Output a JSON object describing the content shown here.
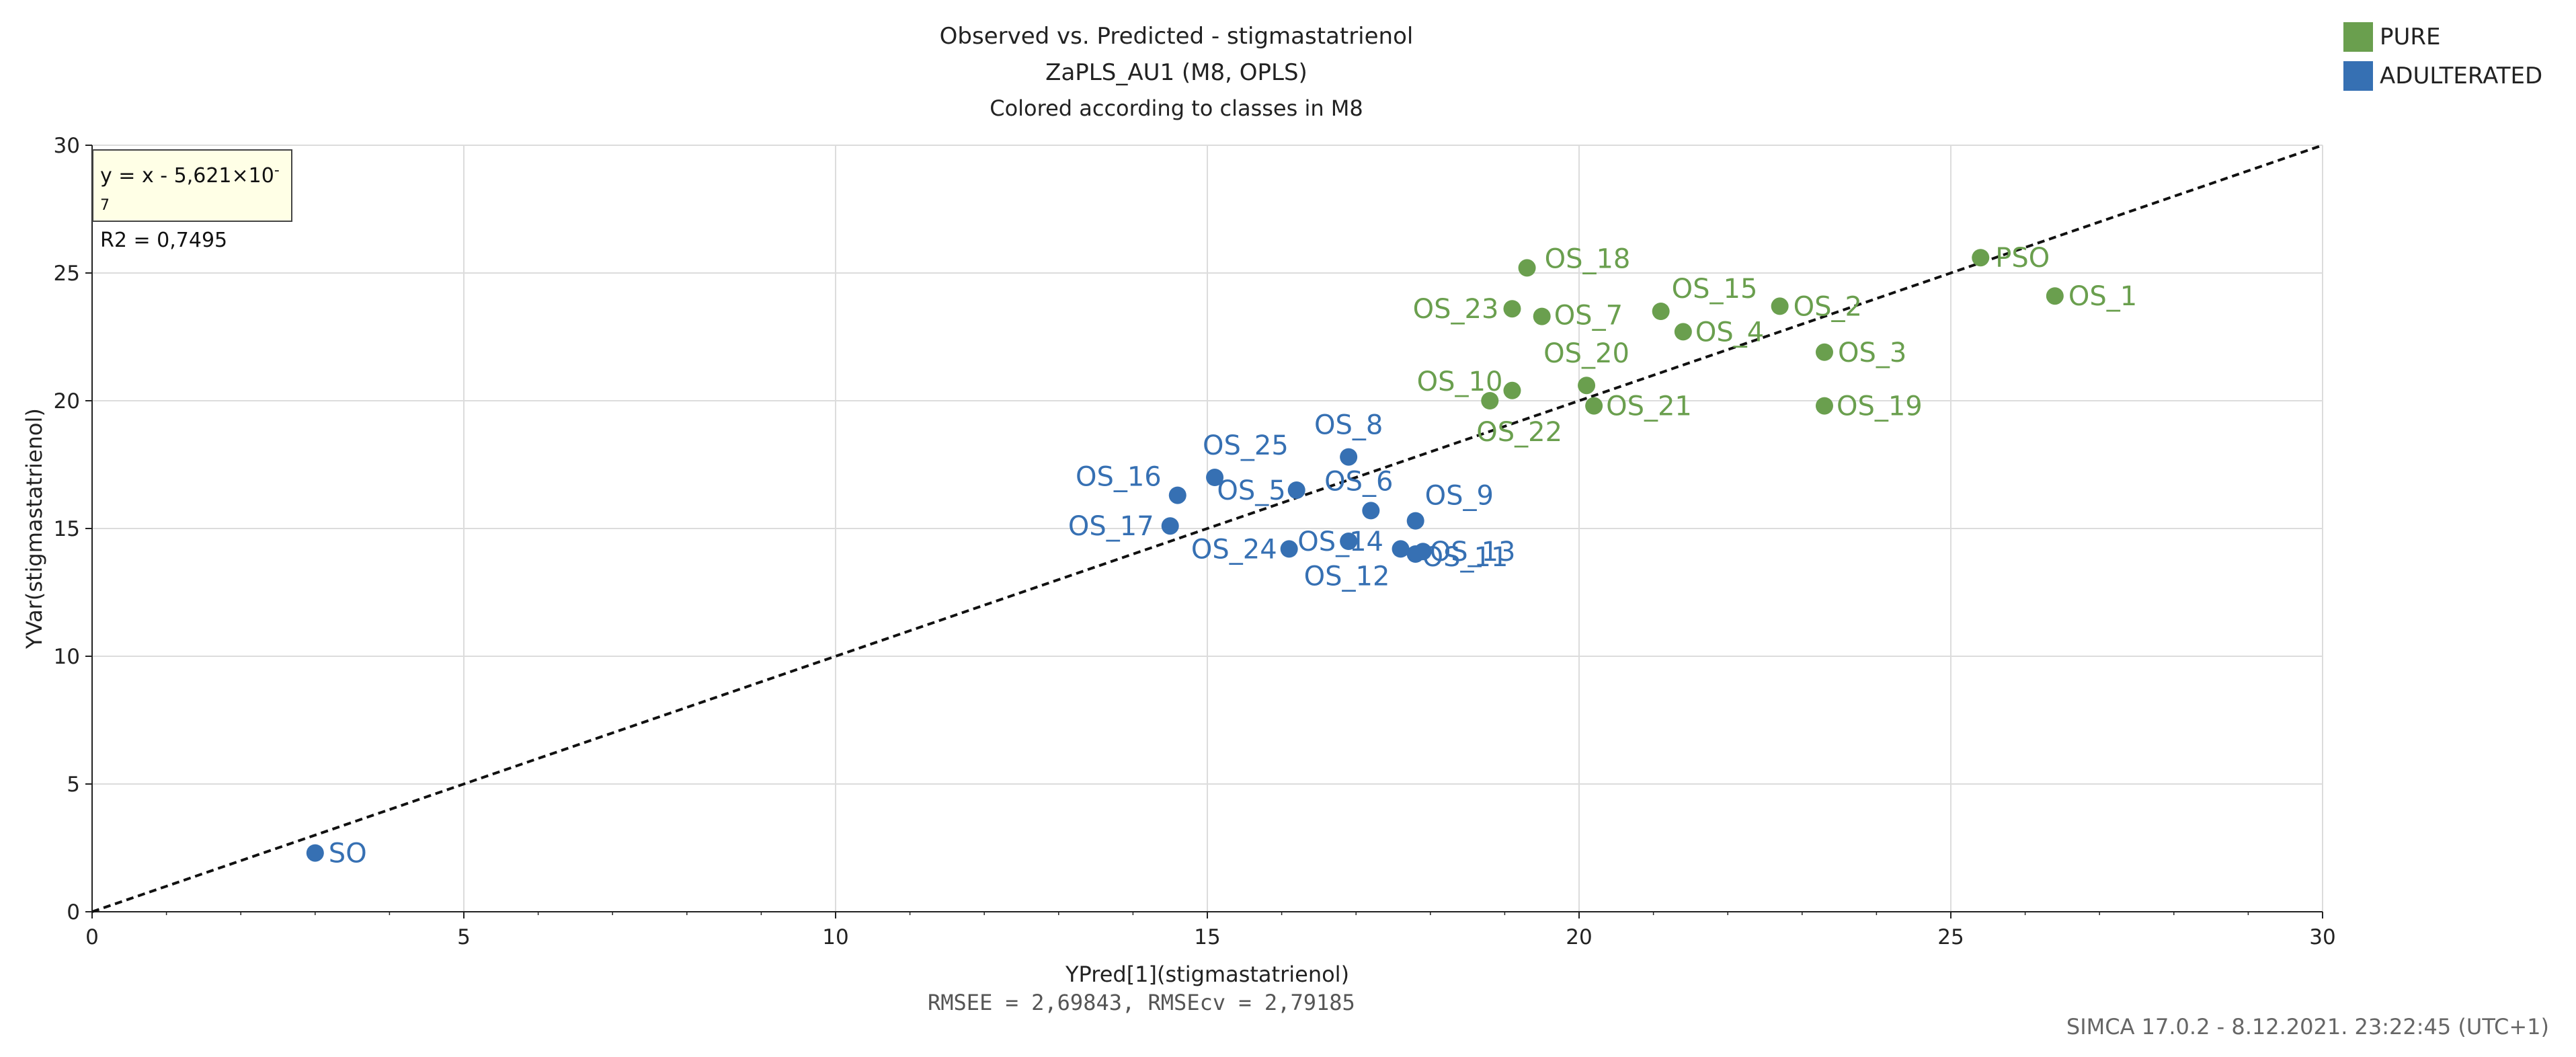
{
  "chart_data": {
    "type": "scatter",
    "title": "Observed vs. Predicted - stigmastatrienol",
    "subtitle": "ZaPLS_AU1 (M8, OPLS)",
    "subtitle2": "Colored according to classes in M8",
    "xlabel": "YPred[1](stigmastatrienol)",
    "ylabel": "YVar(stigmastatrienol)",
    "xlim": [
      0,
      30
    ],
    "ylim": [
      0,
      30
    ],
    "xticks": [
      0,
      5,
      10,
      15,
      20,
      25,
      30
    ],
    "yticks": [
      0,
      5,
      10,
      15,
      20,
      25,
      30
    ],
    "grid": true,
    "legend_position": "top-right",
    "legend": [
      {
        "name": "PURE",
        "color": "#6a9f4e"
      },
      {
        "name": "ADULTERATED",
        "color": "#3670b3"
      }
    ],
    "fit_line": {
      "slope": 1,
      "intercept": 0,
      "style": "dashed"
    },
    "equation_line1": "y = x - 5,621×10",
    "equation_exponent": "-7",
    "equation_line2": "R2 = 0,7495",
    "rmse_text": "RMSEE = 2,69843, RMSEcv = 2,79185",
    "footer": "SIMCA 17.0.2 - 8.12.2021. 23:22:45 (UTC+1)",
    "series": [
      {
        "name": "PURE",
        "color": "#6a9f4e",
        "points": [
          {
            "label": "PSO",
            "x": 25.4,
            "y": 25.6
          },
          {
            "label": "OS_1",
            "x": 26.4,
            "y": 24.1
          },
          {
            "label": "OS_18",
            "x": 19.3,
            "y": 25.2
          },
          {
            "label": "OS_15",
            "x": 21.1,
            "y": 23.5
          },
          {
            "label": "OS_2",
            "x": 22.7,
            "y": 23.7
          },
          {
            "label": "OS_23",
            "x": 19.1,
            "y": 23.6
          },
          {
            "label": "OS_7",
            "x": 19.5,
            "y": 23.3
          },
          {
            "label": "OS_4",
            "x": 21.4,
            "y": 22.7
          },
          {
            "label": "OS_3",
            "x": 23.3,
            "y": 21.9
          },
          {
            "label": "OS_20",
            "x": 20.1,
            "y": 20.6
          },
          {
            "label": "OS_10",
            "x": 19.1,
            "y": 20.4
          },
          {
            "label": "OS_22",
            "x": 18.8,
            "y": 20.0
          },
          {
            "label": "OS_21",
            "x": 20.2,
            "y": 19.8
          },
          {
            "label": "OS_19",
            "x": 23.3,
            "y": 19.8
          }
        ]
      },
      {
        "name": "ADULTERATED",
        "color": "#3670b3",
        "points": [
          {
            "label": "OS_8",
            "x": 16.9,
            "y": 17.8
          },
          {
            "label": "OS_25",
            "x": 15.1,
            "y": 17.0
          },
          {
            "label": "OS_16",
            "x": 14.6,
            "y": 16.3
          },
          {
            "label": "OS_5",
            "x": 16.2,
            "y": 16.5
          },
          {
            "label": "OS_6",
            "x": 17.2,
            "y": 15.7
          },
          {
            "label": "OS_9",
            "x": 17.8,
            "y": 15.3
          },
          {
            "label": "OS_17",
            "x": 14.5,
            "y": 15.1
          },
          {
            "label": "OS_24",
            "x": 16.1,
            "y": 14.2
          },
          {
            "label": "OS_14",
            "x": 16.9,
            "y": 14.5
          },
          {
            "label": "OS_12",
            "x": 17.6,
            "y": 14.2
          },
          {
            "label": "OS_13",
            "x": 17.9,
            "y": 14.1
          },
          {
            "label": "OS_11",
            "x": 17.8,
            "y": 14.0
          },
          {
            "label": "SO",
            "x": 3.0,
            "y": 2.3
          }
        ]
      }
    ]
  }
}
